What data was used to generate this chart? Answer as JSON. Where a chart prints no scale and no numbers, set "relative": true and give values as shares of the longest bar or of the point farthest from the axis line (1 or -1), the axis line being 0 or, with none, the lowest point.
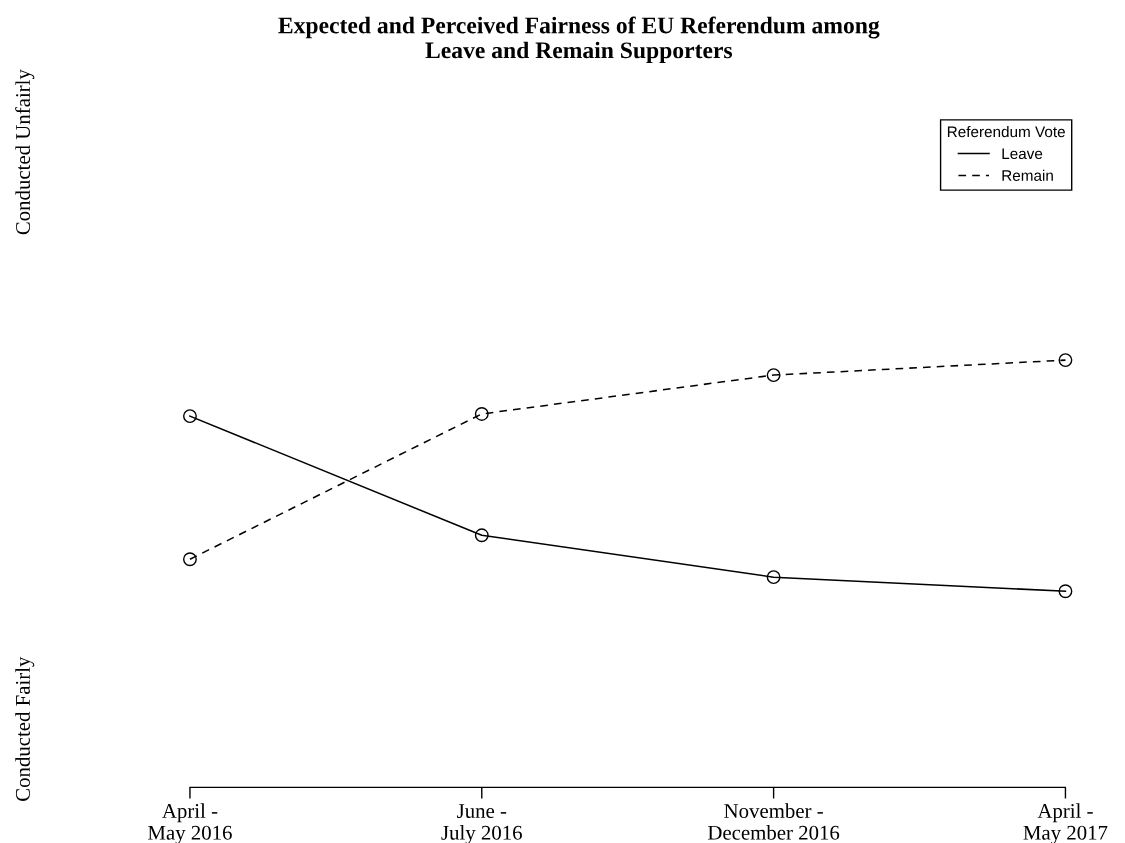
{
  "chart_data": {
    "type": "line",
    "title": "Expected and Perceived Fairness of EU Referendum among\nLeave and Remain Supporters",
    "categories": [
      "April -\nMay 2016",
      "June -\nJuly 2016",
      "November -\nDecember 2016",
      "April -\nMay 2017"
    ],
    "series": [
      {
        "name": "Leave",
        "color": "#000000",
        "line_style": "solid",
        "values": [
          0.869,
          0.59,
          0.492,
          0.459
        ]
      },
      {
        "name": "Remain",
        "color": "#000000",
        "line_style": "dashed",
        "values": [
          0.534,
          0.874,
          0.965,
          1
        ]
      }
    ],
    "relative": true,
    "annotations": [
      "Conducted Unfairly",
      "Conducted Fairly"
    ],
    "marker": "circle",
    "legend": "top right",
    "legend_title": "Referendum Vote"
  }
}
